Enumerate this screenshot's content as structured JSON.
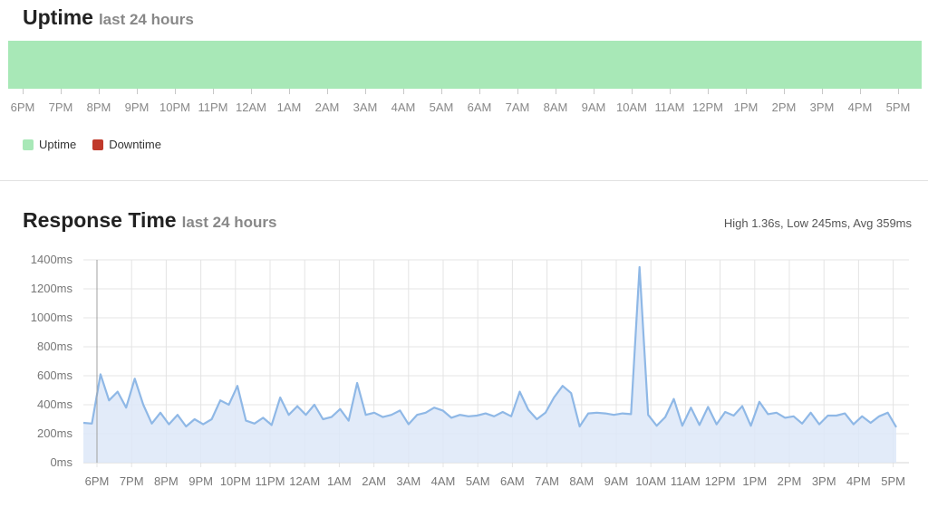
{
  "uptime": {
    "title": "Uptime",
    "subtitle": "last 24 hours",
    "bar_color": "#a8e8b7",
    "tick_labels": [
      "6PM",
      "7PM",
      "8PM",
      "9PM",
      "10PM",
      "11PM",
      "12AM",
      "1AM",
      "2AM",
      "3AM",
      "4AM",
      "5AM",
      "6AM",
      "7AM",
      "8AM",
      "9AM",
      "10AM",
      "11AM",
      "12PM",
      "1PM",
      "2PM",
      "3PM",
      "4PM",
      "5PM"
    ],
    "legend": [
      {
        "label": "Uptime",
        "color": "#a8e8b7"
      },
      {
        "label": "Downtime",
        "color": "#c0392b"
      }
    ]
  },
  "response_time": {
    "title": "Response Time",
    "subtitle": "last 24 hours",
    "stats": "High 1.36s, Low 245ms, Avg 359ms"
  },
  "chart_data": {
    "type": "area",
    "y_tick_labels": [
      "0ms",
      "200ms",
      "400ms",
      "600ms",
      "800ms",
      "1000ms",
      "1200ms",
      "1400ms"
    ],
    "y_ticks": [
      0,
      200,
      400,
      600,
      800,
      1000,
      1200,
      1400
    ],
    "ylim": [
      0,
      1400
    ],
    "x_tick_labels": [
      "6PM",
      "7PM",
      "8PM",
      "9PM",
      "10PM",
      "11PM",
      "12AM",
      "1AM",
      "2AM",
      "3AM",
      "4AM",
      "5AM",
      "6AM",
      "7AM",
      "8AM",
      "9AM",
      "10AM",
      "11AM",
      "12PM",
      "1PM",
      "2PM",
      "3PM",
      "4PM",
      "5PM"
    ],
    "series": [
      {
        "color": "#8fb8e6",
        "fill": "#dde8f8",
        "values": [
          275,
          270,
          610,
          430,
          490,
          380,
          580,
          400,
          270,
          345,
          265,
          330,
          250,
          300,
          265,
          300,
          430,
          400,
          530,
          290,
          270,
          310,
          260,
          450,
          330,
          390,
          330,
          400,
          300,
          315,
          370,
          290,
          550,
          330,
          345,
          315,
          330,
          360,
          265,
          330,
          345,
          380,
          360,
          310,
          330,
          320,
          325,
          340,
          320,
          350,
          320,
          490,
          365,
          300,
          345,
          450,
          530,
          480,
          250,
          340,
          345,
          340,
          330,
          340,
          335,
          1350,
          330,
          255,
          315,
          440,
          255,
          380,
          260,
          385,
          265,
          350,
          325,
          390,
          255,
          420,
          335,
          345,
          310,
          320,
          270,
          345,
          265,
          325,
          325,
          340,
          265,
          320,
          275,
          320,
          345,
          245
        ]
      }
    ],
    "grid": true
  }
}
